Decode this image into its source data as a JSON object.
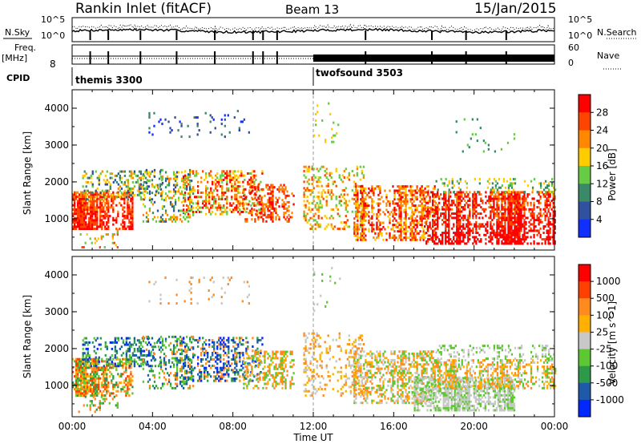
{
  "header": {
    "station": "Rankin Inlet (fitACF)",
    "beam": "Beam 13",
    "date": "15/Jan/2015"
  },
  "top_panel": {
    "left_label": "N.Sky",
    "right_label": "N.Search",
    "left_ticks": [
      "10^5",
      "10^0"
    ],
    "right_ticks": [
      "10^5",
      "10^0"
    ]
  },
  "freq_panel": {
    "left_label": "Freq.",
    "left_unit": "[MHz]",
    "right_label": "Nave",
    "left_ticks": [
      "8"
    ],
    "right_ticks": [
      "60",
      "0"
    ]
  },
  "cpid": {
    "label": "CPID",
    "segments": [
      {
        "name": "themis 3300",
        "start_hour": 0,
        "end_hour": 12
      },
      {
        "name": "twofsound 3503",
        "start_hour": 12,
        "end_hour": 24
      }
    ]
  },
  "chart_data": [
    {
      "type": "heatmap",
      "title": "",
      "xlabel": "",
      "ylabel": "Slant Range [km]",
      "xlim_hours": [
        0,
        24
      ],
      "ylim": [
        150,
        4500
      ],
      "y_ticks": [
        "4000",
        "3000",
        "2000",
        "1000"
      ],
      "colorbar": {
        "label": "Power [dB]",
        "ticks": [
          "28",
          "24",
          "20",
          "16",
          "12",
          "8",
          "4"
        ],
        "colors": [
          "#ff0000",
          "#ff4400",
          "#ff8800",
          "#ffcc00",
          "#66cc44",
          "#3a8a6a",
          "#3050a0",
          "#1030ff"
        ]
      },
      "seed": 11,
      "palette": "power",
      "patches": [
        {
          "t0": 0.0,
          "t1": 3.0,
          "r0": 700,
          "r1": 1700,
          "d": 0.9,
          "c": [
            0,
            1,
            2
          ],
          "pos": "power-main"
        },
        {
          "t0": 0.5,
          "t1": 4.5,
          "r0": 1500,
          "r1": 2300,
          "d": 0.5,
          "c": [
            2,
            3,
            4,
            5,
            6
          ],
          "pos": "mixed"
        },
        {
          "t0": 3.5,
          "t1": 6.0,
          "r0": 900,
          "r1": 2300,
          "d": 0.45,
          "c": [
            2,
            3,
            4,
            5,
            6
          ],
          "pos": "mixed"
        },
        {
          "t0": 5.5,
          "t1": 9.5,
          "r0": 1100,
          "r1": 2300,
          "d": 0.5,
          "c": [
            0,
            1,
            2,
            3,
            4
          ],
          "pos": "mixed"
        },
        {
          "t0": 8.5,
          "t1": 11.0,
          "r0": 900,
          "r1": 1900,
          "d": 0.5,
          "c": [
            0,
            1,
            2
          ],
          "pos": "mixed"
        },
        {
          "t0": 3.8,
          "t1": 8.8,
          "r0": 3200,
          "r1": 3900,
          "d": 0.1,
          "c": [
            5,
            6,
            7
          ],
          "pos": "sparse"
        },
        {
          "t0": 11.5,
          "t1": 14.5,
          "r0": 700,
          "r1": 2400,
          "d": 0.35,
          "c": [
            1,
            2,
            3,
            4
          ],
          "pos": "mixed"
        },
        {
          "t0": 14.0,
          "t1": 18.0,
          "r0": 400,
          "r1": 1900,
          "d": 0.7,
          "c": [
            0,
            1,
            2,
            3
          ],
          "pos": "mixed"
        },
        {
          "t0": 17.5,
          "t1": 24.0,
          "r0": 300,
          "r1": 1700,
          "d": 0.9,
          "c": [
            0,
            0,
            1,
            2
          ],
          "pos": "power-main"
        },
        {
          "t0": 18.0,
          "t1": 24.0,
          "r0": 1700,
          "r1": 2100,
          "d": 0.3,
          "c": [
            3,
            4,
            5
          ],
          "pos": "sparse"
        },
        {
          "t0": 0.3,
          "t1": 2.3,
          "r0": 200,
          "r1": 700,
          "d": 0.25,
          "c": [
            1,
            2,
            3,
            4
          ],
          "pos": "sparse"
        },
        {
          "t0": 12.0,
          "t1": 13.5,
          "r0": 3000,
          "r1": 4200,
          "d": 0.06,
          "c": [
            3,
            4
          ],
          "pos": "sparse"
        },
        {
          "t0": 19.0,
          "t1": 22.0,
          "r0": 2800,
          "r1": 3700,
          "d": 0.05,
          "c": [
            4,
            5
          ],
          "pos": "sparse"
        }
      ]
    },
    {
      "type": "heatmap",
      "title": "",
      "xlabel": "Time UT",
      "ylabel": "Slant Range [km]",
      "xlim_hours": [
        0,
        24
      ],
      "ylim": [
        150,
        4500
      ],
      "x_ticks": [
        "00:00",
        "04:00",
        "08:00",
        "12:00",
        "16:00",
        "20:00",
        "00:00"
      ],
      "y_ticks": [
        "4000",
        "3000",
        "2000",
        "1000"
      ],
      "colorbar": {
        "label": "Velocity [m s^-1]",
        "ticks": [
          "1000",
          "500",
          "100",
          "25",
          "-25",
          "-100",
          "-500",
          "-1000"
        ],
        "colors": [
          "#ff0000",
          "#ff4000",
          "#ff8a1e",
          "#ffb000",
          "#c8c8c8",
          "#5ec832",
          "#2d9a4a",
          "#1e5aaa",
          "#0028ff"
        ]
      },
      "seed": 29,
      "palette": "velocity",
      "patches": [
        {
          "t0": 0.0,
          "t1": 3.0,
          "r0": 700,
          "r1": 1700,
          "d": 0.85,
          "c": [
            1,
            2,
            3,
            5,
            6
          ],
          "pos": "mixed"
        },
        {
          "t0": 0.5,
          "t1": 4.5,
          "r0": 1500,
          "r1": 2300,
          "d": 0.5,
          "c": [
            5,
            6,
            7,
            8
          ],
          "pos": "mixed"
        },
        {
          "t0": 3.5,
          "t1": 6.0,
          "r0": 900,
          "r1": 2300,
          "d": 0.45,
          "c": [
            2,
            5,
            6,
            7
          ],
          "pos": "mixed"
        },
        {
          "t0": 5.5,
          "t1": 9.5,
          "r0": 1100,
          "r1": 2300,
          "d": 0.5,
          "c": [
            6,
            7,
            8,
            2
          ],
          "pos": "mixed"
        },
        {
          "t0": 8.5,
          "t1": 11.0,
          "r0": 900,
          "r1": 1900,
          "d": 0.5,
          "c": [
            2,
            3,
            5
          ],
          "pos": "mixed"
        },
        {
          "t0": 3.8,
          "t1": 8.8,
          "r0": 3200,
          "r1": 3900,
          "d": 0.08,
          "c": [
            4,
            2
          ],
          "pos": "sparse"
        },
        {
          "t0": 11.5,
          "t1": 14.5,
          "r0": 700,
          "r1": 2400,
          "d": 0.35,
          "c": [
            2,
            3,
            4
          ],
          "pos": "mixed"
        },
        {
          "t0": 14.0,
          "t1": 18.0,
          "r0": 500,
          "r1": 1900,
          "d": 0.6,
          "c": [
            2,
            3,
            4,
            5
          ],
          "pos": "mixed"
        },
        {
          "t0": 17.0,
          "t1": 22.0,
          "r0": 300,
          "r1": 1200,
          "d": 0.9,
          "c": [
            4,
            4,
            5
          ],
          "pos": "mixed"
        },
        {
          "t0": 18.0,
          "t1": 24.0,
          "r0": 900,
          "r1": 1700,
          "d": 0.7,
          "c": [
            2,
            3,
            5,
            4
          ],
          "pos": "mixed"
        },
        {
          "t0": 18.0,
          "t1": 24.0,
          "r0": 1700,
          "r1": 2100,
          "d": 0.35,
          "c": [
            4,
            5
          ],
          "pos": "sparse"
        },
        {
          "t0": 0.3,
          "t1": 2.3,
          "r0": 200,
          "r1": 700,
          "d": 0.25,
          "c": [
            2,
            5,
            6
          ],
          "pos": "sparse"
        },
        {
          "t0": 12.0,
          "t1": 13.5,
          "r0": 3000,
          "r1": 4200,
          "d": 0.06,
          "c": [
            4,
            5
          ],
          "pos": "sparse"
        }
      ]
    }
  ]
}
